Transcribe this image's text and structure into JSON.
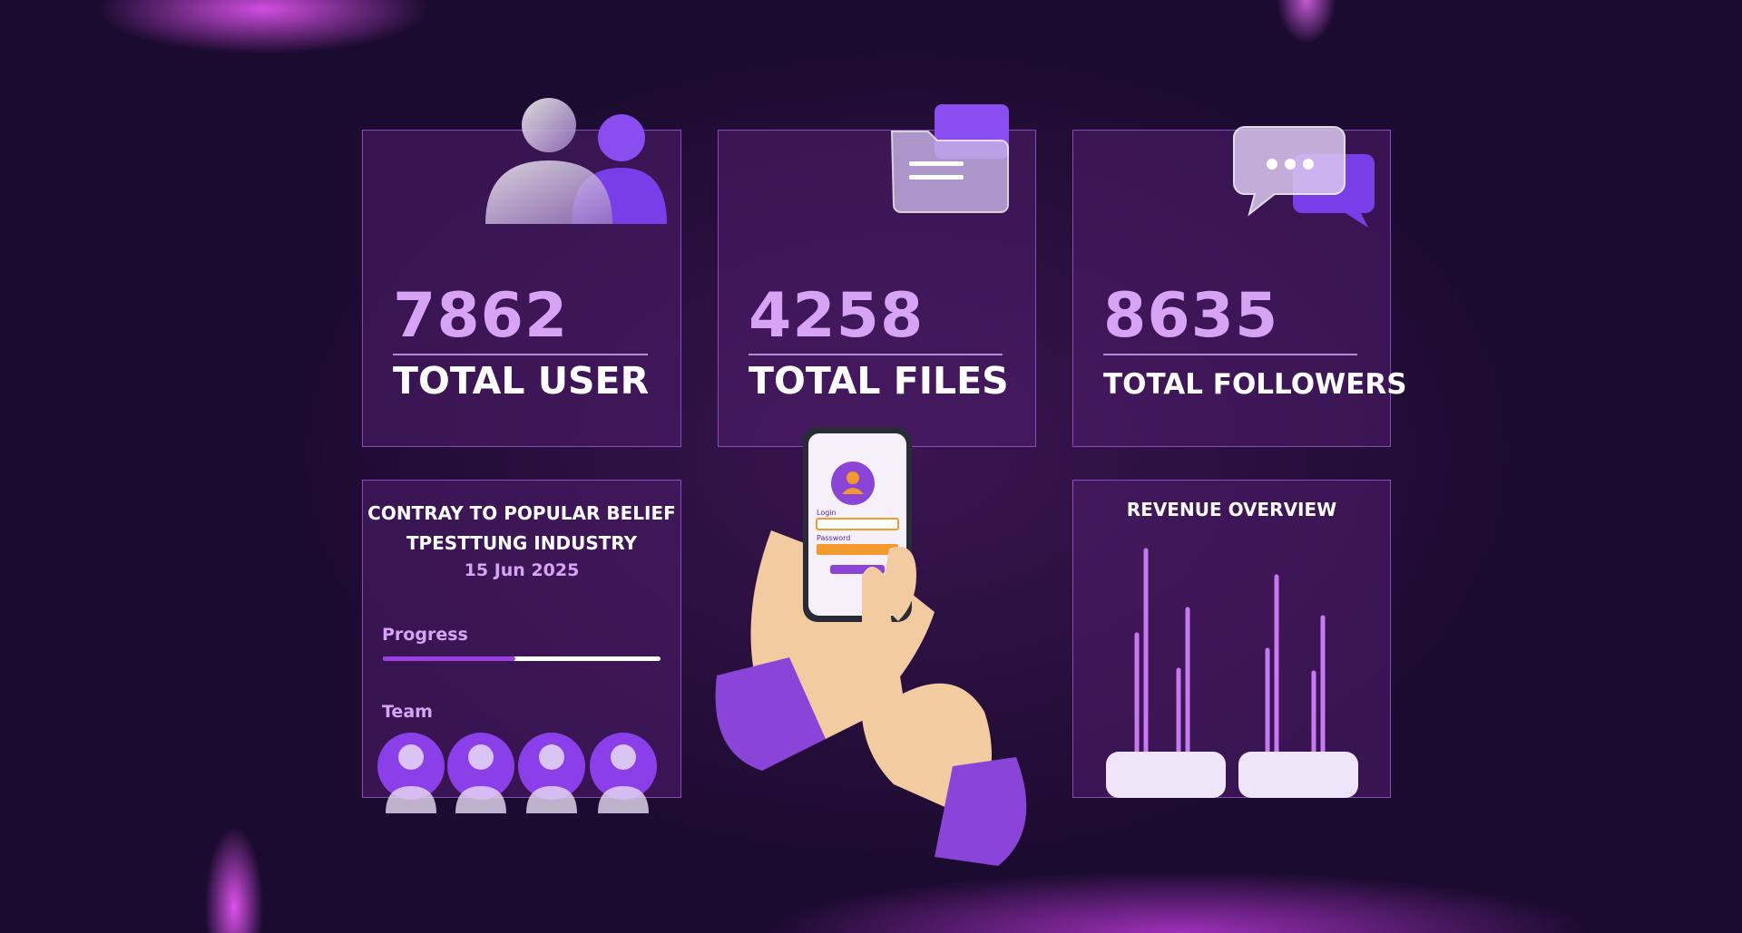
{
  "cards": [
    {
      "value": 7862,
      "label": "TOTAL USER"
    },
    {
      "value": 4258,
      "label": "TOTAL FILES"
    },
    {
      "value": 8635,
      "label": "TOTAL FOLLOWERS"
    }
  ],
  "project": {
    "title_lines": [
      "CONTRAY TO POPULAR BELIEF",
      "TPESTTUNG INDUSTRY"
    ],
    "date": "15 Jun 2025",
    "progress_label": "Progress",
    "team_label": "Team"
  },
  "revenue": {
    "title": "REVENUE OVERVIEW"
  },
  "phone": {
    "login_label": "Login",
    "password_label": "Password"
  }
}
